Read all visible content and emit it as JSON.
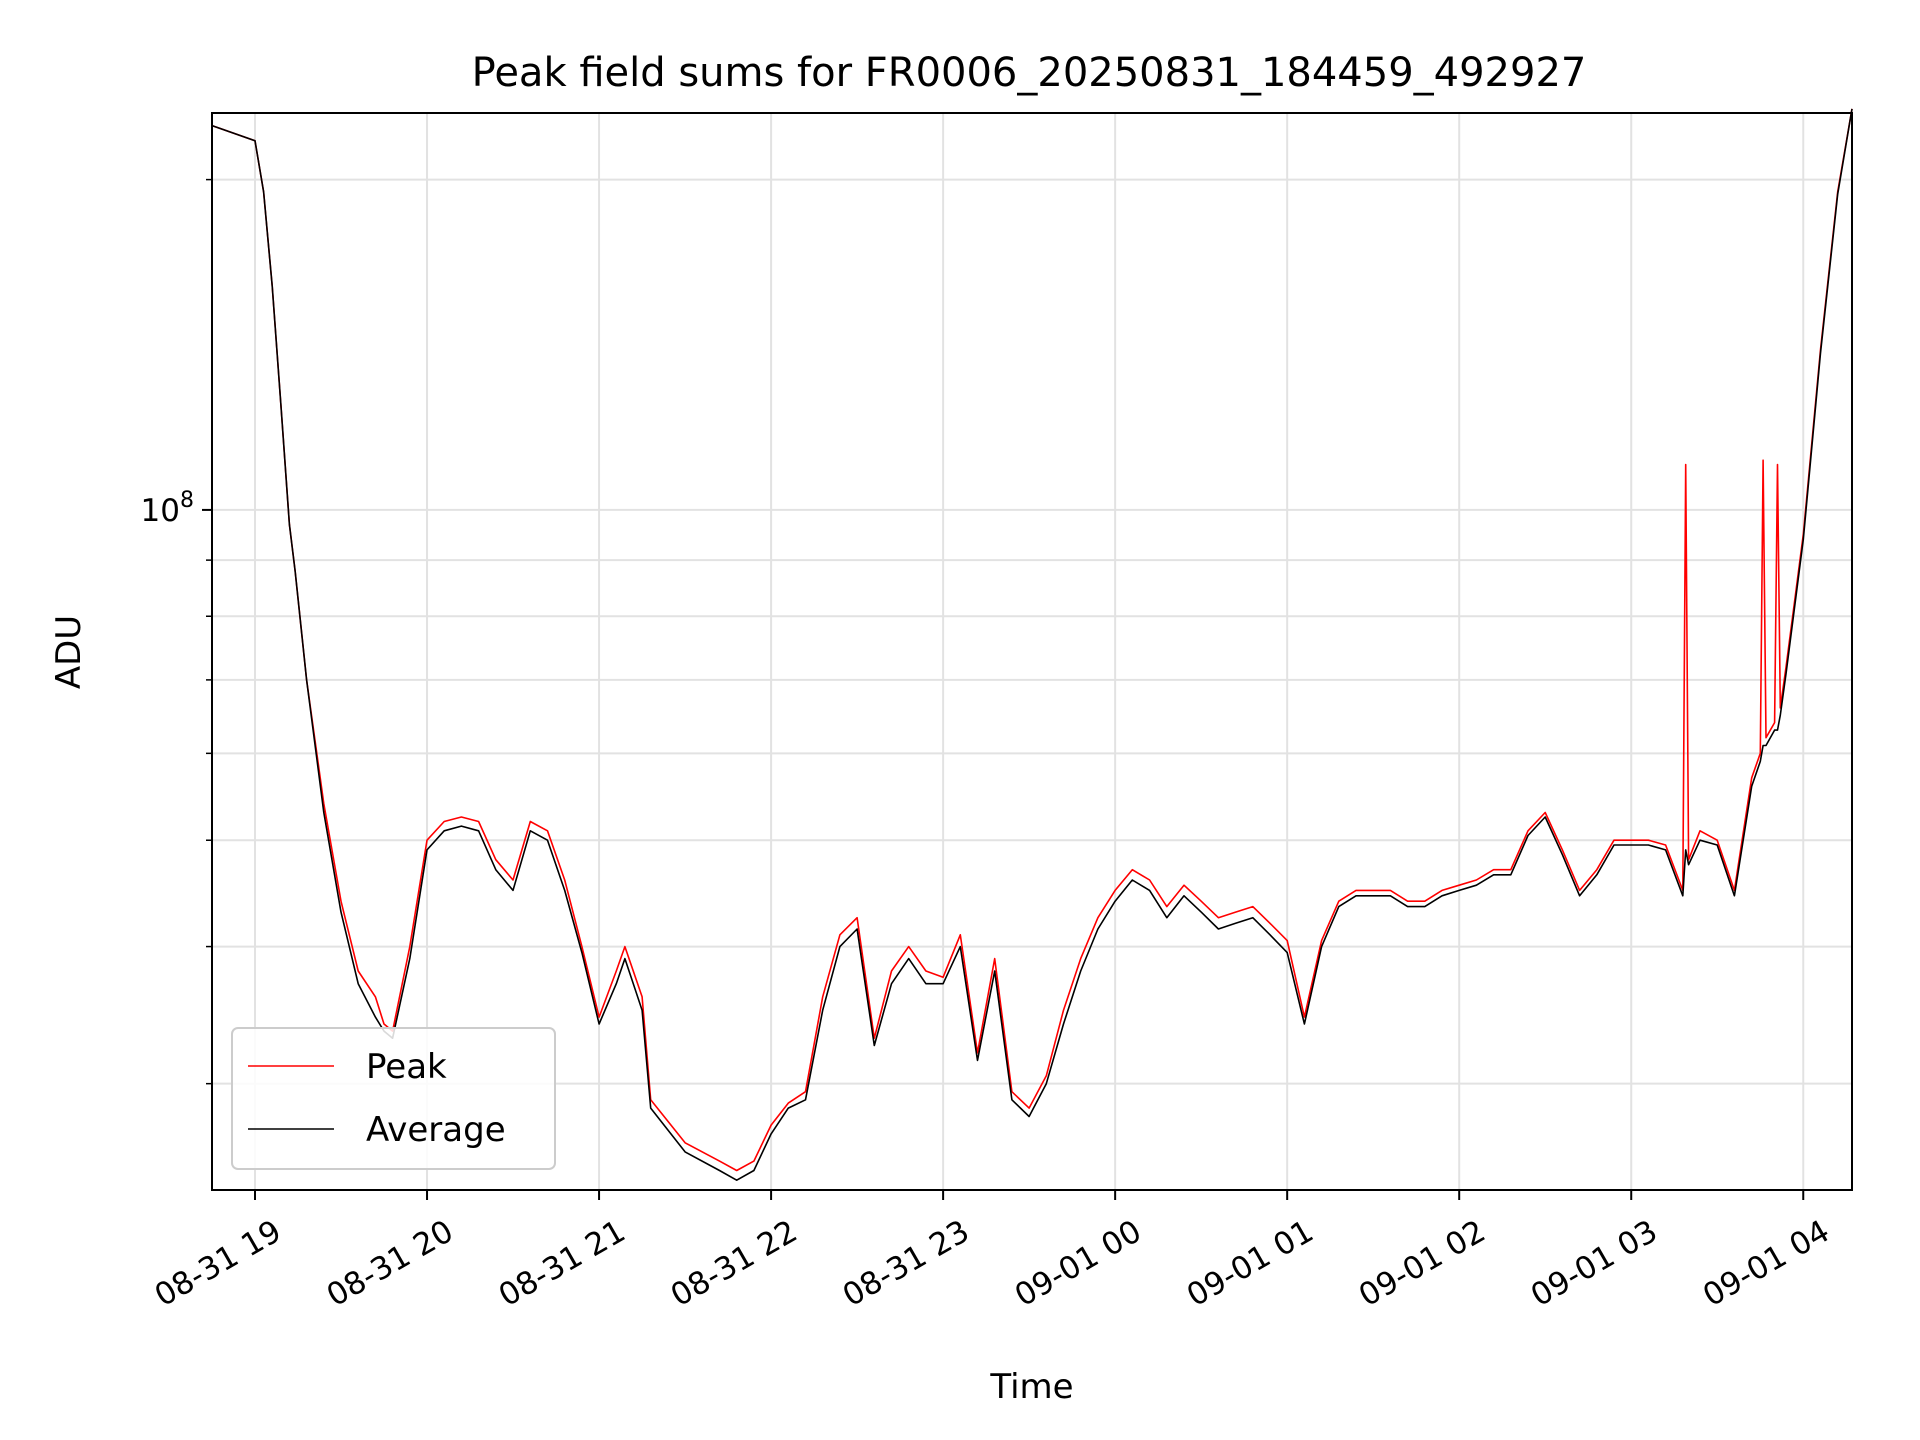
{
  "chart_data": {
    "type": "line",
    "title": "Peak field sums for FR0006_20250831_184459_492927",
    "xlabel": "Time",
    "ylabel": "ADU",
    "yscale": "log",
    "ylim": [
      24000000,
      230000000
    ],
    "xlim": [
      "2025-08-31 18:45",
      "2025-09-01 04:17"
    ],
    "x_ticks": [
      {
        "t": "2025-08-31 19:00",
        "label": "08-31 19"
      },
      {
        "t": "2025-08-31 20:00",
        "label": "08-31 20"
      },
      {
        "t": "2025-08-31 21:00",
        "label": "08-31 21"
      },
      {
        "t": "2025-08-31 22:00",
        "label": "08-31 22"
      },
      {
        "t": "2025-08-31 23:00",
        "label": "08-31 23"
      },
      {
        "t": "2025-09-01 00:00",
        "label": "09-01 00"
      },
      {
        "t": "2025-09-01 01:00",
        "label": "09-01 01"
      },
      {
        "t": "2025-09-01 02:00",
        "label": "09-01 02"
      },
      {
        "t": "2025-09-01 03:00",
        "label": "09-01 03"
      },
      {
        "t": "2025-09-01 04:00",
        "label": "09-01 04"
      }
    ],
    "y_major_ticks": [
      {
        "value": 100000000,
        "base": "10",
        "exp": "8"
      }
    ],
    "y_minor_gridlines": [
      30000000,
      40000000,
      50000000,
      60000000,
      70000000,
      80000000,
      90000000,
      200000000
    ],
    "grid": true,
    "legend": "lower-left",
    "series": [
      {
        "name": "Peak",
        "color": "#ff0000",
        "x": [
          "2025-08-31 18:45",
          "2025-08-31 19:00",
          "2025-08-31 19:03",
          "2025-08-31 19:06",
          "2025-08-31 19:09",
          "2025-08-31 19:12",
          "2025-08-31 19:14",
          "2025-08-31 19:18",
          "2025-08-31 19:24",
          "2025-08-31 19:30",
          "2025-08-31 19:36",
          "2025-08-31 19:42",
          "2025-08-31 19:45",
          "2025-08-31 19:48",
          "2025-08-31 19:54",
          "2025-08-31 20:00",
          "2025-08-31 20:06",
          "2025-08-31 20:12",
          "2025-08-31 20:18",
          "2025-08-31 20:24",
          "2025-08-31 20:30",
          "2025-08-31 20:36",
          "2025-08-31 20:42",
          "2025-08-31 20:48",
          "2025-08-31 20:54",
          "2025-08-31 21:00",
          "2025-08-31 21:06",
          "2025-08-31 21:09",
          "2025-08-31 21:15",
          "2025-08-31 21:18",
          "2025-08-31 21:30",
          "2025-08-31 21:42",
          "2025-08-31 21:48",
          "2025-08-31 21:54",
          "2025-08-31 22:00",
          "2025-08-31 22:06",
          "2025-08-31 22:12",
          "2025-08-31 22:18",
          "2025-08-31 22:24",
          "2025-08-31 22:30",
          "2025-08-31 22:36",
          "2025-08-31 22:42",
          "2025-08-31 22:48",
          "2025-08-31 22:54",
          "2025-08-31 23:00",
          "2025-08-31 23:06",
          "2025-08-31 23:12",
          "2025-08-31 23:18",
          "2025-08-31 23:24",
          "2025-08-31 23:30",
          "2025-08-31 23:36",
          "2025-08-31 23:42",
          "2025-08-31 23:48",
          "2025-08-31 23:54",
          "2025-09-01 00:00",
          "2025-09-01 00:06",
          "2025-09-01 00:12",
          "2025-09-01 00:18",
          "2025-09-01 00:24",
          "2025-09-01 00:30",
          "2025-09-01 00:36",
          "2025-09-01 00:42",
          "2025-09-01 00:48",
          "2025-09-01 00:54",
          "2025-09-01 01:00",
          "2025-09-01 01:06",
          "2025-09-01 01:12",
          "2025-09-01 01:18",
          "2025-09-01 01:24",
          "2025-09-01 01:30",
          "2025-09-01 01:36",
          "2025-09-01 01:42",
          "2025-09-01 01:48",
          "2025-09-01 01:54",
          "2025-09-01 02:00",
          "2025-09-01 02:06",
          "2025-09-01 02:12",
          "2025-09-01 02:18",
          "2025-09-01 02:24",
          "2025-09-01 02:30",
          "2025-09-01 02:36",
          "2025-09-01 02:42",
          "2025-09-01 02:48",
          "2025-09-01 02:54",
          "2025-09-01 03:00",
          "2025-09-01 03:06",
          "2025-09-01 03:12",
          "2025-09-01 03:18",
          "2025-09-01 03:19",
          "2025-09-01 03:20",
          "2025-09-01 03:24",
          "2025-09-01 03:30",
          "2025-09-01 03:36",
          "2025-09-01 03:42",
          "2025-09-01 03:45",
          "2025-09-01 03:46",
          "2025-09-01 03:47",
          "2025-09-01 03:50",
          "2025-09-01 03:51",
          "2025-09-01 03:52",
          "2025-09-01 03:54",
          "2025-09-01 04:00",
          "2025-09-01 04:06",
          "2025-09-01 04:12",
          "2025-09-01 04:17"
        ],
        "values": [
          224000000,
          217000000,
          195000000,
          160000000,
          125000000,
          97000000,
          88000000,
          70000000,
          54000000,
          44000000,
          38000000,
          36000000,
          34000000,
          33500000,
          40000000,
          50000000,
          52000000,
          52500000,
          52000000,
          48000000,
          46000000,
          52000000,
          51000000,
          46000000,
          40000000,
          34500000,
          38000000,
          40000000,
          36000000,
          29000000,
          26500000,
          25500000,
          25000000,
          25500000,
          27500000,
          28800000,
          29500000,
          36000000,
          41000000,
          42500000,
          33000000,
          38000000,
          40000000,
          38000000,
          37500000,
          41000000,
          32000000,
          39000000,
          29500000,
          28500000,
          30500000,
          35000000,
          39000000,
          42500000,
          45000000,
          47000000,
          46000000,
          43500000,
          45500000,
          44000000,
          42500000,
          43000000,
          43500000,
          42000000,
          40500000,
          34500000,
          40500000,
          44000000,
          45000000,
          45000000,
          45000000,
          44000000,
          44000000,
          45000000,
          45500000,
          46000000,
          47000000,
          47000000,
          51000000,
          53000000,
          49000000,
          45000000,
          47000000,
          50000000,
          50000000,
          50000000,
          49500000,
          45000000,
          110000000,
          48000000,
          51000000,
          50000000,
          45000000,
          57000000,
          60000000,
          111000000,
          62000000,
          64000000,
          110000000,
          66000000,
          72000000,
          95000000,
          140000000,
          195000000,
          232000000
        ]
      },
      {
        "name": "Average",
        "color": "#000000",
        "x": [
          "2025-08-31 18:45",
          "2025-08-31 19:00",
          "2025-08-31 19:03",
          "2025-08-31 19:06",
          "2025-08-31 19:09",
          "2025-08-31 19:12",
          "2025-08-31 19:14",
          "2025-08-31 19:18",
          "2025-08-31 19:24",
          "2025-08-31 19:30",
          "2025-08-31 19:36",
          "2025-08-31 19:42",
          "2025-08-31 19:45",
          "2025-08-31 19:48",
          "2025-08-31 19:54",
          "2025-08-31 20:00",
          "2025-08-31 20:06",
          "2025-08-31 20:12",
          "2025-08-31 20:18",
          "2025-08-31 20:24",
          "2025-08-31 20:30",
          "2025-08-31 20:36",
          "2025-08-31 20:42",
          "2025-08-31 20:48",
          "2025-08-31 20:54",
          "2025-08-31 21:00",
          "2025-08-31 21:06",
          "2025-08-31 21:09",
          "2025-08-31 21:15",
          "2025-08-31 21:18",
          "2025-08-31 21:30",
          "2025-08-31 21:42",
          "2025-08-31 21:48",
          "2025-08-31 21:54",
          "2025-08-31 22:00",
          "2025-08-31 22:06",
          "2025-08-31 22:12",
          "2025-08-31 22:18",
          "2025-08-31 22:24",
          "2025-08-31 22:30",
          "2025-08-31 22:36",
          "2025-08-31 22:42",
          "2025-08-31 22:48",
          "2025-08-31 22:54",
          "2025-08-31 23:00",
          "2025-08-31 23:06",
          "2025-08-31 23:12",
          "2025-08-31 23:18",
          "2025-08-31 23:24",
          "2025-08-31 23:30",
          "2025-08-31 23:36",
          "2025-08-31 23:42",
          "2025-08-31 23:48",
          "2025-08-31 23:54",
          "2025-09-01 00:00",
          "2025-09-01 00:06",
          "2025-09-01 00:12",
          "2025-09-01 00:18",
          "2025-09-01 00:24",
          "2025-09-01 00:30",
          "2025-09-01 00:36",
          "2025-09-01 00:42",
          "2025-09-01 00:48",
          "2025-09-01 00:54",
          "2025-09-01 01:00",
          "2025-09-01 01:06",
          "2025-09-01 01:12",
          "2025-09-01 01:18",
          "2025-09-01 01:24",
          "2025-09-01 01:30",
          "2025-09-01 01:36",
          "2025-09-01 01:42",
          "2025-09-01 01:48",
          "2025-09-01 01:54",
          "2025-09-01 02:00",
          "2025-09-01 02:06",
          "2025-09-01 02:12",
          "2025-09-01 02:18",
          "2025-09-01 02:24",
          "2025-09-01 02:30",
          "2025-09-01 02:36",
          "2025-09-01 02:42",
          "2025-09-01 02:48",
          "2025-09-01 02:54",
          "2025-09-01 03:00",
          "2025-09-01 03:06",
          "2025-09-01 03:12",
          "2025-09-01 03:18",
          "2025-09-01 03:19",
          "2025-09-01 03:20",
          "2025-09-01 03:24",
          "2025-09-01 03:30",
          "2025-09-01 03:36",
          "2025-09-01 03:42",
          "2025-09-01 03:45",
          "2025-09-01 03:46",
          "2025-09-01 03:47",
          "2025-09-01 03:50",
          "2025-09-01 03:51",
          "2025-09-01 03:52",
          "2025-09-01 03:54",
          "2025-09-01 04:00",
          "2025-09-01 04:06",
          "2025-09-01 04:12",
          "2025-09-01 04:17"
        ],
        "values": [
          224000000,
          217000000,
          195000000,
          160000000,
          125000000,
          97000000,
          88000000,
          70000000,
          53000000,
          43000000,
          37000000,
          34500000,
          33500000,
          33000000,
          39000000,
          49000000,
          51000000,
          51500000,
          51000000,
          47000000,
          45000000,
          51000000,
          50000000,
          45000000,
          39500000,
          34000000,
          37000000,
          39000000,
          35000000,
          28500000,
          26000000,
          25000000,
          24500000,
          25000000,
          27000000,
          28500000,
          29000000,
          35000000,
          40000000,
          41500000,
          32500000,
          37000000,
          39000000,
          37000000,
          37000000,
          40000000,
          31500000,
          38000000,
          29000000,
          28000000,
          30000000,
          34000000,
          38000000,
          41500000,
          44000000,
          46000000,
          45000000,
          42500000,
          44500000,
          43000000,
          41500000,
          42000000,
          42500000,
          41000000,
          39500000,
          34000000,
          40000000,
          43500000,
          44500000,
          44500000,
          44500000,
          43500000,
          43500000,
          44500000,
          45000000,
          45500000,
          46500000,
          46500000,
          50500000,
          52500000,
          48500000,
          44500000,
          46500000,
          49500000,
          49500000,
          49500000,
          49000000,
          44500000,
          49000000,
          47500000,
          50000000,
          49500000,
          44500000,
          56000000,
          59000000,
          61000000,
          61000000,
          63000000,
          63000000,
          65000000,
          71000000,
          94000000,
          139000000,
          194000000,
          232000000
        ]
      }
    ]
  }
}
